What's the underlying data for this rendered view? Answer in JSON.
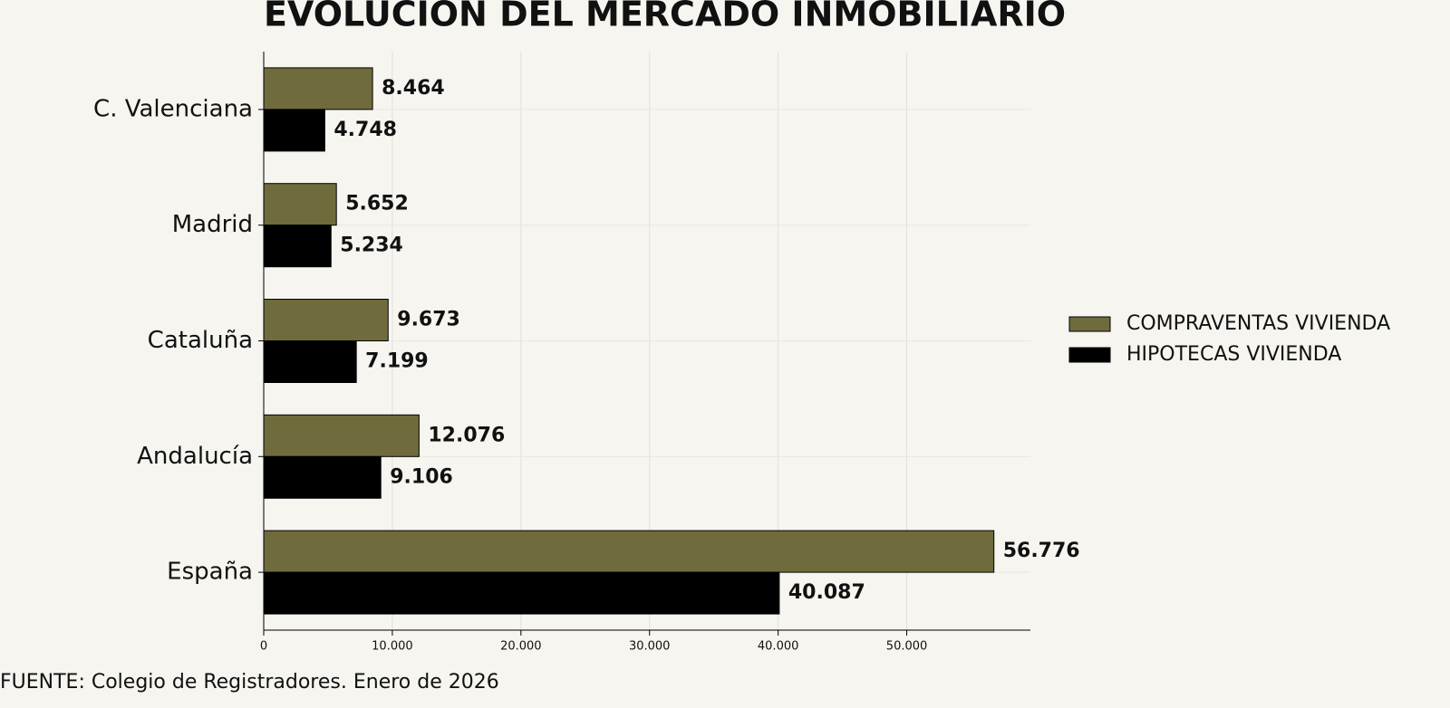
{
  "chart_data": {
    "type": "hbar",
    "title": "EVOLUCION DEL MERCADO INMOBILIARIO",
    "source": "FUENTE: Colegio de Registradores. Enero de 2026",
    "categories": [
      "C. Valenciana",
      "Madrid",
      "Cataluña",
      "Andalucía",
      "España"
    ],
    "series": [
      {
        "name": "COMPRAVENTAS VIVIENDA",
        "color": "#6f6b3c",
        "values": [
          8464,
          5652,
          9673,
          12076,
          56776
        ],
        "value_labels": [
          "8.464",
          "5.652",
          "9.673",
          "12.076",
          "56.776"
        ]
      },
      {
        "name": "HIPOTECAS VIVIENDA",
        "color": "#000000",
        "values": [
          4748,
          5234,
          7199,
          9106,
          40087
        ],
        "value_labels": [
          "4.748",
          "5.234",
          "7.199",
          "9.106",
          "40.087"
        ]
      }
    ],
    "xlim": [
      0,
      59615
    ],
    "xticks": [
      0,
      {
        "value": 10000,
        "label": "10.000"
      },
      {
        "value": 20000,
        "label": "20.000"
      },
      {
        "value": 30000,
        "label": "30.000"
      },
      {
        "value": 40000,
        "label": "40.000"
      },
      {
        "value": 50000,
        "label": "50.000"
      }
    ],
    "grid": true,
    "legend": "right"
  }
}
